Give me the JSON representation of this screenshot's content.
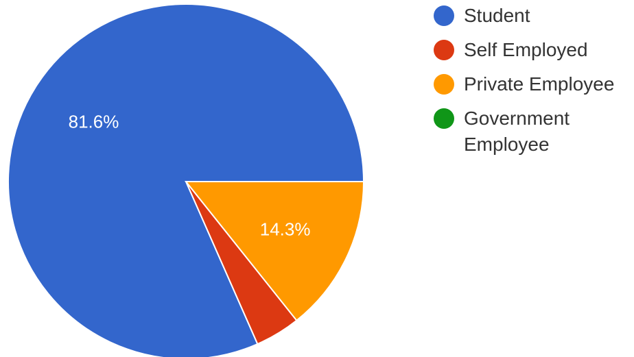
{
  "chart_data": {
    "type": "pie",
    "categories": [
      "Student",
      "Self Employed",
      "Private Employee",
      "Government Employee"
    ],
    "values": [
      81.6,
      4.1,
      14.3,
      0
    ],
    "data_labels": [
      "81.6%",
      "",
      "14.3%",
      ""
    ],
    "colors": [
      "#3366cc",
      "#dc3912",
      "#ff9900",
      "#109618"
    ],
    "legend_position": "right",
    "start": "east",
    "direction": "counterclockwise"
  },
  "legend": {
    "items": [
      {
        "label": "Student",
        "color": "#3366cc",
        "icon": "circle-icon"
      },
      {
        "label": "Self Employed",
        "color": "#dc3912",
        "icon": "circle-icon"
      },
      {
        "label": "Private Employee",
        "color": "#ff9900",
        "icon": "circle-icon"
      },
      {
        "label": "Government Employee",
        "color": "#109618",
        "icon": "circle-icon"
      }
    ]
  }
}
